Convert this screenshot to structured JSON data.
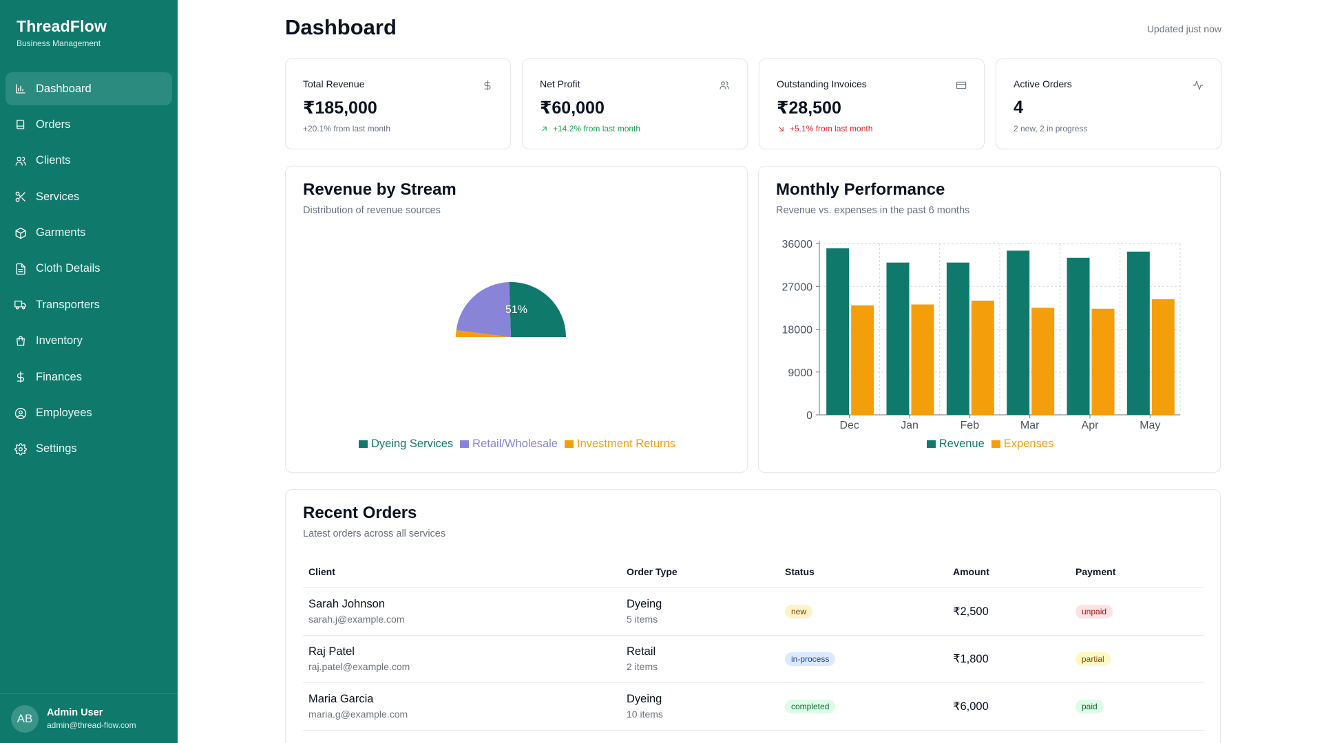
{
  "brand": {
    "title": "ThreadFlow",
    "subtitle": "Business Management"
  },
  "sidebar": {
    "items": [
      {
        "label": "Dashboard",
        "icon": "bar-chart-icon",
        "active": true
      },
      {
        "label": "Orders",
        "icon": "book-icon"
      },
      {
        "label": "Clients",
        "icon": "users-icon"
      },
      {
        "label": "Services",
        "icon": "scissors-icon"
      },
      {
        "label": "Garments",
        "icon": "package-icon"
      },
      {
        "label": "Cloth Details",
        "icon": "file-text-icon"
      },
      {
        "label": "Transporters",
        "icon": "truck-icon"
      },
      {
        "label": "Inventory",
        "icon": "shopping-bag-icon"
      },
      {
        "label": "Finances",
        "icon": "dollar-sign-icon"
      },
      {
        "label": "Employees",
        "icon": "user-circle-icon"
      },
      {
        "label": "Settings",
        "icon": "gear-icon"
      }
    ]
  },
  "user": {
    "initials": "AB",
    "name": "Admin User",
    "email": "admin@thread-flow.com"
  },
  "header": {
    "title": "Dashboard",
    "updated": "Updated just now"
  },
  "stats": [
    {
      "label": "Total Revenue",
      "value": "₹185,000",
      "note": "+20.1% from last month",
      "trend": "neutral",
      "icon": "dollar-sign-icon"
    },
    {
      "label": "Net Profit",
      "value": "₹60,000",
      "note": "+14.2% from last month",
      "trend": "up",
      "icon": "users-icon"
    },
    {
      "label": "Outstanding Invoices",
      "value": "₹28,500",
      "note": "+5.1% from last month",
      "trend": "down",
      "icon": "credit-card-icon"
    },
    {
      "label": "Active Orders",
      "value": "4",
      "note": "2 new, 2 in progress",
      "trend": "neutral",
      "icon": "activity-icon"
    }
  ],
  "revenue_card": {
    "title": "Revenue by Stream",
    "subtitle": "Distribution of revenue sources"
  },
  "performance_card": {
    "title": "Monthly Performance",
    "subtitle": "Revenue vs. expenses in the past 6 months"
  },
  "chart_data": [
    {
      "type": "pie",
      "title": "Revenue by Stream",
      "categories": [
        "Dyeing Services",
        "Retail/Wholesale",
        "Investment Returns"
      ],
      "values": [
        51,
        45,
        4
      ],
      "colors": [
        "#0f7a6c",
        "#8884d8",
        "#f59e0b"
      ],
      "visible_label": "51%",
      "legend": "bottom"
    },
    {
      "type": "bar",
      "title": "Monthly Performance",
      "categories": [
        "Dec",
        "Jan",
        "Feb",
        "Mar",
        "Apr",
        "May"
      ],
      "series": [
        {
          "name": "Revenue",
          "values": [
            35000,
            32000,
            32000,
            34500,
            33000,
            34300
          ],
          "color": "#0f7a6c"
        },
        {
          "name": "Expenses",
          "values": [
            23000,
            23200,
            24000,
            22500,
            22300,
            24300
          ],
          "color": "#f59e0b"
        }
      ],
      "yticks": [
        0,
        9000,
        18000,
        27000,
        36000
      ],
      "ylim": [
        0,
        36000
      ],
      "grid": true,
      "legend": "bottom"
    }
  ],
  "orders": {
    "title": "Recent Orders",
    "subtitle": "Latest orders across all services",
    "columns": [
      "Client",
      "Order Type",
      "Status",
      "Amount",
      "Payment"
    ],
    "rows": [
      {
        "name": "Sarah Johnson",
        "email": "sarah.j@example.com",
        "type": "Dyeing",
        "items": "5 items",
        "status": "new",
        "amount": "₹2,500",
        "payment": "unpaid"
      },
      {
        "name": "Raj Patel",
        "email": "raj.patel@example.com",
        "type": "Retail",
        "items": "2 items",
        "status": "in-process",
        "amount": "₹1,800",
        "payment": "partial"
      },
      {
        "name": "Maria Garcia",
        "email": "maria.g@example.com",
        "type": "Dyeing",
        "items": "10 items",
        "status": "completed",
        "amount": "₹6,000",
        "payment": "paid"
      }
    ]
  }
}
